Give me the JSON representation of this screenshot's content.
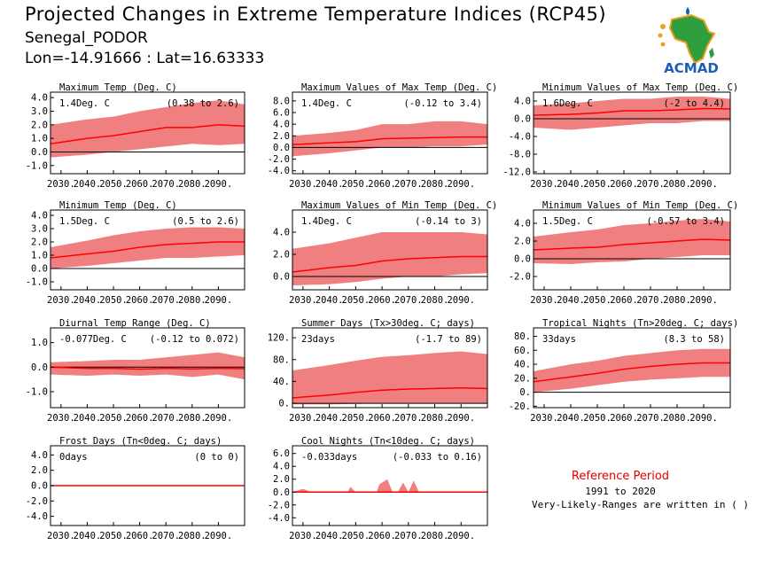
{
  "header": {
    "title": "Projected Changes in Extreme Temperature Indices (RCP45)",
    "location": "Senegal_PODOR",
    "coords": "Lon=-14.91666 : Lat=16.63333"
  },
  "logo": {
    "text": "ACMAD",
    "icon": "africa-map-logo-icon"
  },
  "reference": {
    "title": "Reference Period",
    "years": "1991 to 2020",
    "note": "Very-Likely-Ranges are written in ( )"
  },
  "colors": {
    "band": "#f08080",
    "line": "#ff0000",
    "zero": "#000000",
    "ref_title": "#e00000",
    "logo_text": "#1a5fb4",
    "logo_map": "#2e9e3e"
  },
  "chart_data": [
    {
      "type": "area",
      "title": "Maximum Temp (Deg. C)",
      "value_label": "1.4Deg. C",
      "range_label": "(0.38 to 2.6)",
      "x_ticks": [
        "2030.",
        "2040.",
        "2050.",
        "2060.",
        "2070.",
        "2080.",
        "2090."
      ],
      "xlim": [
        2026,
        2100
      ],
      "y_ticks": [
        "4.0",
        "3.0",
        "2.0",
        "1.0",
        "0.0",
        "-1.0"
      ],
      "ylim": [
        -1.6,
        4.4
      ],
      "median": [
        [
          2026,
          0.6
        ],
        [
          2040,
          1.0
        ],
        [
          2050,
          1.2
        ],
        [
          2060,
          1.5
        ],
        [
          2070,
          1.8
        ],
        [
          2080,
          1.8
        ],
        [
          2090,
          2.0
        ],
        [
          2100,
          1.9
        ]
      ],
      "upper": [
        [
          2026,
          2.0
        ],
        [
          2040,
          2.4
        ],
        [
          2050,
          2.6
        ],
        [
          2060,
          3.0
        ],
        [
          2070,
          3.3
        ],
        [
          2080,
          3.6
        ],
        [
          2090,
          3.8
        ],
        [
          2100,
          3.5
        ]
      ],
      "lower": [
        [
          2026,
          -0.4
        ],
        [
          2040,
          -0.2
        ],
        [
          2050,
          0.0
        ],
        [
          2060,
          0.2
        ],
        [
          2070,
          0.4
        ],
        [
          2080,
          0.6
        ],
        [
          2090,
          0.5
        ],
        [
          2100,
          0.6
        ]
      ]
    },
    {
      "type": "area",
      "title": "Maximum Values of Max Temp (Deg. C)",
      "value_label": "1.4Deg. C",
      "range_label": "(-0.12 to 3.4)",
      "x_ticks": [
        "2030.",
        "2040.",
        "2050.",
        "2060.",
        "2070.",
        "2080.",
        "2090."
      ],
      "xlim": [
        2026,
        2100
      ],
      "y_ticks": [
        "8.0",
        "6.0",
        "4.0",
        "2.0",
        "0.0",
        "-2.0",
        "-4.0"
      ],
      "ylim": [
        -4.5,
        9.5
      ],
      "median": [
        [
          2026,
          0.5
        ],
        [
          2040,
          0.8
        ],
        [
          2050,
          1.0
        ],
        [
          2060,
          1.5
        ],
        [
          2070,
          1.6
        ],
        [
          2080,
          1.7
        ],
        [
          2090,
          1.8
        ],
        [
          2100,
          1.8
        ]
      ],
      "upper": [
        [
          2026,
          2.0
        ],
        [
          2040,
          2.5
        ],
        [
          2050,
          3.0
        ],
        [
          2060,
          4.0
        ],
        [
          2070,
          4.0
        ],
        [
          2080,
          4.5
        ],
        [
          2090,
          4.5
        ],
        [
          2100,
          4.0
        ]
      ],
      "lower": [
        [
          2026,
          -1.5
        ],
        [
          2040,
          -1.0
        ],
        [
          2050,
          -0.5
        ],
        [
          2060,
          0.0
        ],
        [
          2070,
          0.0
        ],
        [
          2080,
          0.2
        ],
        [
          2090,
          0.2
        ],
        [
          2100,
          0.5
        ]
      ]
    },
    {
      "type": "area",
      "title": "Minimum Values of Max Temp (Deg. C)",
      "value_label": "1.6Deg. C",
      "range_label": "(-2 to 4.4)",
      "x_ticks": [
        "2030.",
        "2040.",
        "2050.",
        "2060.",
        "2070.",
        "2080.",
        "2090."
      ],
      "xlim": [
        2026,
        2100
      ],
      "y_ticks": [
        "4.0",
        "0.0",
        "-4.0",
        "-8.0",
        "-12.0"
      ],
      "ylim": [
        -12.4,
        6.0
      ],
      "median": [
        [
          2026,
          0.8
        ],
        [
          2040,
          1.0
        ],
        [
          2050,
          1.3
        ],
        [
          2060,
          1.8
        ],
        [
          2070,
          1.8
        ],
        [
          2080,
          2.0
        ],
        [
          2090,
          2.3
        ],
        [
          2100,
          2.2
        ]
      ],
      "upper": [
        [
          2026,
          3.0
        ],
        [
          2040,
          3.5
        ],
        [
          2050,
          4.0
        ],
        [
          2060,
          4.5
        ],
        [
          2070,
          4.5
        ],
        [
          2080,
          5.0
        ],
        [
          2090,
          5.0
        ],
        [
          2100,
          4.5
        ]
      ],
      "lower": [
        [
          2026,
          -2.0
        ],
        [
          2040,
          -2.5
        ],
        [
          2050,
          -2.0
        ],
        [
          2060,
          -1.5
        ],
        [
          2070,
          -1.0
        ],
        [
          2080,
          -1.0
        ],
        [
          2090,
          -0.5
        ],
        [
          2100,
          -0.5
        ]
      ]
    },
    {
      "type": "area",
      "title": "Minimum Temp (Deg. C)",
      "value_label": "1.5Deg. C",
      "range_label": "(0.5 to 2.6)",
      "x_ticks": [
        "2030.",
        "2040.",
        "2050.",
        "2060.",
        "2070.",
        "2080.",
        "2090."
      ],
      "xlim": [
        2026,
        2100
      ],
      "y_ticks": [
        "4.0",
        "3.0",
        "2.0",
        "1.0",
        "0.0",
        "-1.0"
      ],
      "ylim": [
        -1.6,
        4.4
      ],
      "median": [
        [
          2026,
          0.8
        ],
        [
          2040,
          1.1
        ],
        [
          2050,
          1.3
        ],
        [
          2060,
          1.6
        ],
        [
          2070,
          1.8
        ],
        [
          2080,
          1.9
        ],
        [
          2090,
          2.0
        ],
        [
          2100,
          2.0
        ]
      ],
      "upper": [
        [
          2026,
          1.6
        ],
        [
          2040,
          2.1
        ],
        [
          2050,
          2.5
        ],
        [
          2060,
          2.8
        ],
        [
          2070,
          3.0
        ],
        [
          2080,
          3.1
        ],
        [
          2090,
          3.1
        ],
        [
          2100,
          3.0
        ]
      ],
      "lower": [
        [
          2026,
          0.0
        ],
        [
          2040,
          0.2
        ],
        [
          2050,
          0.4
        ],
        [
          2060,
          0.6
        ],
        [
          2070,
          0.8
        ],
        [
          2080,
          0.8
        ],
        [
          2090,
          0.9
        ],
        [
          2100,
          1.0
        ]
      ]
    },
    {
      "type": "area",
      "title": "Maximum Values of Min Temp (Deg. C)",
      "value_label": "1.4Deg. C",
      "range_label": "(-0.14 to 3)",
      "x_ticks": [
        "2030.",
        "2040.",
        "2050.",
        "2060.",
        "2070.",
        "2080.",
        "2090."
      ],
      "xlim": [
        2026,
        2100
      ],
      "y_ticks": [
        "4.0",
        "2.0",
        "0.0"
      ],
      "ylim": [
        -1.2,
        6.0
      ],
      "median": [
        [
          2026,
          0.4
        ],
        [
          2040,
          0.8
        ],
        [
          2050,
          1.0
        ],
        [
          2060,
          1.4
        ],
        [
          2070,
          1.6
        ],
        [
          2080,
          1.7
        ],
        [
          2090,
          1.8
        ],
        [
          2100,
          1.8
        ]
      ],
      "upper": [
        [
          2026,
          2.5
        ],
        [
          2040,
          3.0
        ],
        [
          2050,
          3.5
        ],
        [
          2060,
          4.0
        ],
        [
          2070,
          4.0
        ],
        [
          2080,
          4.0
        ],
        [
          2090,
          4.0
        ],
        [
          2100,
          3.8
        ]
      ],
      "lower": [
        [
          2026,
          -0.8
        ],
        [
          2040,
          -0.7
        ],
        [
          2050,
          -0.5
        ],
        [
          2060,
          -0.2
        ],
        [
          2070,
          0.0
        ],
        [
          2080,
          0.0
        ],
        [
          2090,
          0.2
        ],
        [
          2100,
          0.3
        ]
      ]
    },
    {
      "type": "area",
      "title": "Minimum Values of Min Temp (Deg. C)",
      "value_label": "1.5Deg. C",
      "range_label": "(-0.57 to 3.4)",
      "x_ticks": [
        "2030.",
        "2040.",
        "2050.",
        "2060.",
        "2070.",
        "2080.",
        "2090."
      ],
      "xlim": [
        2026,
        2100
      ],
      "y_ticks": [
        "4.0",
        "2.0",
        "0.0",
        "-2.0"
      ],
      "ylim": [
        -3.5,
        5.5
      ],
      "median": [
        [
          2026,
          1.0
        ],
        [
          2040,
          1.2
        ],
        [
          2050,
          1.3
        ],
        [
          2060,
          1.6
        ],
        [
          2070,
          1.8
        ],
        [
          2080,
          2.0
        ],
        [
          2090,
          2.2
        ],
        [
          2100,
          2.1
        ]
      ],
      "upper": [
        [
          2026,
          2.5
        ],
        [
          2040,
          3.0
        ],
        [
          2050,
          3.3
        ],
        [
          2060,
          3.8
        ],
        [
          2070,
          4.0
        ],
        [
          2080,
          4.3
        ],
        [
          2090,
          4.5
        ],
        [
          2100,
          4.2
        ]
      ],
      "lower": [
        [
          2026,
          -0.5
        ],
        [
          2040,
          -0.6
        ],
        [
          2050,
          -0.4
        ],
        [
          2060,
          -0.3
        ],
        [
          2070,
          0.0
        ],
        [
          2080,
          0.2
        ],
        [
          2090,
          0.4
        ],
        [
          2100,
          0.4
        ]
      ]
    },
    {
      "type": "area",
      "title": "Diurnal Temp Range (Deg. C)",
      "value_label": "-0.077Deg. C",
      "range_label": "(-0.12 to 0.072)",
      "x_ticks": [
        "2030.",
        "2040.",
        "2050.",
        "2060.",
        "2070.",
        "2080.",
        "2090."
      ],
      "xlim": [
        2026,
        2100
      ],
      "y_ticks": [
        "1.0",
        "0.0",
        "-1.0"
      ],
      "ylim": [
        -1.65,
        1.6
      ],
      "median": [
        [
          2026,
          0.0
        ],
        [
          2040,
          -0.05
        ],
        [
          2050,
          -0.05
        ],
        [
          2060,
          -0.08
        ],
        [
          2070,
          -0.05
        ],
        [
          2080,
          -0.07
        ],
        [
          2090,
          -0.05
        ],
        [
          2100,
          -0.06
        ]
      ],
      "upper": [
        [
          2026,
          0.2
        ],
        [
          2040,
          0.25
        ],
        [
          2050,
          0.3
        ],
        [
          2060,
          0.3
        ],
        [
          2070,
          0.4
        ],
        [
          2080,
          0.5
        ],
        [
          2090,
          0.6
        ],
        [
          2100,
          0.4
        ]
      ],
      "lower": [
        [
          2026,
          -0.3
        ],
        [
          2040,
          -0.35
        ],
        [
          2050,
          -0.3
        ],
        [
          2060,
          -0.35
        ],
        [
          2070,
          -0.3
        ],
        [
          2080,
          -0.4
        ],
        [
          2090,
          -0.3
        ],
        [
          2100,
          -0.5
        ]
      ]
    },
    {
      "type": "area",
      "title": "Summer Days (Tx>30deg. C; days)",
      "value_label": "23days",
      "range_label": "(-1.7 to 89)",
      "x_ticks": [
        "2030.",
        "2040.",
        "2050.",
        "2060.",
        "2070.",
        "2080.",
        "2090."
      ],
      "xlim": [
        2026,
        2100
      ],
      "y_ticks": [
        "120.",
        "80.",
        "40.",
        "0."
      ],
      "ylim": [
        -8,
        138
      ],
      "median": [
        [
          2026,
          10
        ],
        [
          2040,
          15
        ],
        [
          2050,
          20
        ],
        [
          2060,
          24
        ],
        [
          2070,
          26
        ],
        [
          2080,
          27
        ],
        [
          2090,
          28
        ],
        [
          2100,
          27
        ]
      ],
      "upper": [
        [
          2026,
          60
        ],
        [
          2040,
          70
        ],
        [
          2050,
          78
        ],
        [
          2060,
          85
        ],
        [
          2070,
          88
        ],
        [
          2080,
          92
        ],
        [
          2090,
          95
        ],
        [
          2100,
          90
        ]
      ],
      "lower": [
        [
          2026,
          -2
        ],
        [
          2040,
          -2
        ],
        [
          2050,
          -1
        ],
        [
          2060,
          0
        ],
        [
          2070,
          0
        ],
        [
          2080,
          0
        ],
        [
          2090,
          0
        ],
        [
          2100,
          0
        ]
      ]
    },
    {
      "type": "area",
      "title": "Tropical Nights (Tn>20deg. C; days)",
      "value_label": "33days",
      "range_label": "(8.3 to 58)",
      "x_ticks": [
        "2030.",
        "2040.",
        "2050.",
        "2060.",
        "2070.",
        "2080.",
        "2090."
      ],
      "xlim": [
        2026,
        2100
      ],
      "y_ticks": [
        "80.",
        "60.",
        "40.",
        "20.",
        "0.",
        "-20."
      ],
      "ylim": [
        -22,
        92
      ],
      "median": [
        [
          2026,
          15
        ],
        [
          2040,
          22
        ],
        [
          2050,
          27
        ],
        [
          2060,
          33
        ],
        [
          2070,
          37
        ],
        [
          2080,
          40
        ],
        [
          2090,
          42
        ],
        [
          2100,
          42
        ]
      ],
      "upper": [
        [
          2026,
          30
        ],
        [
          2040,
          40
        ],
        [
          2050,
          45
        ],
        [
          2060,
          52
        ],
        [
          2070,
          56
        ],
        [
          2080,
          60
        ],
        [
          2090,
          62
        ],
        [
          2100,
          62
        ]
      ],
      "lower": [
        [
          2026,
          0
        ],
        [
          2040,
          5
        ],
        [
          2050,
          10
        ],
        [
          2060,
          15
        ],
        [
          2070,
          18
        ],
        [
          2080,
          20
        ],
        [
          2090,
          22
        ],
        [
          2100,
          22
        ]
      ]
    },
    {
      "type": "area",
      "title": "Frost Days (Tn<0deg. C; days)",
      "value_label": "0days",
      "range_label": "(0 to 0)",
      "x_ticks": [
        "2030.",
        "2040.",
        "2050.",
        "2060.",
        "2070.",
        "2080.",
        "2090."
      ],
      "xlim": [
        2026,
        2100
      ],
      "y_ticks": [
        "4.0",
        "2.0",
        "0.0",
        "-2.0",
        "-4.0"
      ],
      "ylim": [
        -5.2,
        5.2
      ],
      "median": [
        [
          2026,
          0
        ],
        [
          2100,
          0
        ]
      ],
      "upper": [
        [
          2026,
          0
        ],
        [
          2100,
          0
        ]
      ],
      "lower": [
        [
          2026,
          0
        ],
        [
          2100,
          0
        ]
      ]
    },
    {
      "type": "area",
      "title": "Cool Nights (Tn<10deg. C; days)",
      "value_label": "-0.033days",
      "range_label": "(-0.033 to 0.16)",
      "x_ticks": [
        "2030.",
        "2040.",
        "2050.",
        "2060.",
        "2070.",
        "2080.",
        "2090."
      ],
      "xlim": [
        2026,
        2100
      ],
      "y_ticks": [
        "6.0",
        "4.0",
        "2.0",
        "0.0",
        "-2.0",
        "-4.0"
      ],
      "ylim": [
        -5.2,
        7.2
      ],
      "median": [
        [
          2026,
          0
        ],
        [
          2100,
          0
        ]
      ],
      "upper": [
        [
          2026,
          0
        ],
        [
          2030,
          0.5
        ],
        [
          2033,
          0
        ],
        [
          2047,
          0
        ],
        [
          2048,
          0.8
        ],
        [
          2050,
          0
        ],
        [
          2058,
          0
        ],
        [
          2059,
          1.2
        ],
        [
          2062,
          2.0
        ],
        [
          2064,
          0
        ],
        [
          2066,
          0
        ],
        [
          2068,
          1.5
        ],
        [
          2070,
          0
        ],
        [
          2072,
          1.8
        ],
        [
          2074,
          0
        ],
        [
          2100,
          0
        ]
      ],
      "lower": [
        [
          2026,
          0
        ],
        [
          2100,
          0
        ]
      ]
    }
  ]
}
